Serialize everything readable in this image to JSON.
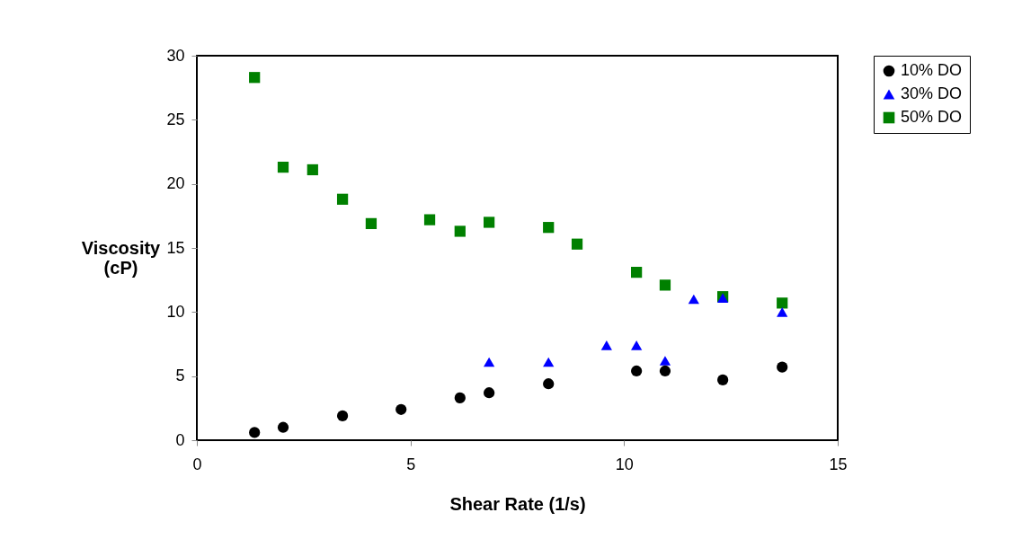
{
  "chart_data": {
    "type": "scatter",
    "xlabel": "Shear Rate (1/s)",
    "ylabel": "Viscosity (cP)",
    "xlim": [
      0,
      15
    ],
    "xticks": [
      0,
      5,
      10,
      15
    ],
    "ylim": [
      0,
      30
    ],
    "yticks": [
      0,
      5,
      10,
      15,
      20,
      25,
      30
    ],
    "legend": "right",
    "series": [
      {
        "name": "10% DO",
        "color": "#000000",
        "marker": "circle",
        "x": [
          1.35,
          2.02,
          3.41,
          4.78,
          6.16,
          6.84,
          8.23,
          10.29,
          10.96,
          12.31,
          13.7
        ],
        "values": [
          0.6,
          1.0,
          1.9,
          2.4,
          3.3,
          3.7,
          4.4,
          5.4,
          5.4,
          4.7,
          5.7
        ]
      },
      {
        "name": "30% DO",
        "color": "#0000ff",
        "marker": "triangle",
        "x": [
          6.84,
          8.23,
          9.59,
          10.29,
          10.96,
          11.63,
          12.31,
          13.7
        ],
        "values": [
          6.1,
          6.1,
          7.4,
          7.4,
          6.2,
          11.0,
          11.1,
          10.0
        ]
      },
      {
        "name": "50% DO",
        "color": "#008000",
        "marker": "square",
        "x": [
          1.35,
          2.02,
          2.71,
          3.41,
          4.08,
          5.45,
          6.16,
          6.84,
          8.23,
          8.9,
          10.29,
          10.96,
          12.31,
          13.7
        ],
        "values": [
          28.3,
          21.3,
          21.1,
          18.8,
          16.9,
          17.2,
          16.3,
          17.0,
          16.6,
          15.3,
          13.1,
          12.1,
          11.2,
          10.7
        ]
      }
    ]
  }
}
